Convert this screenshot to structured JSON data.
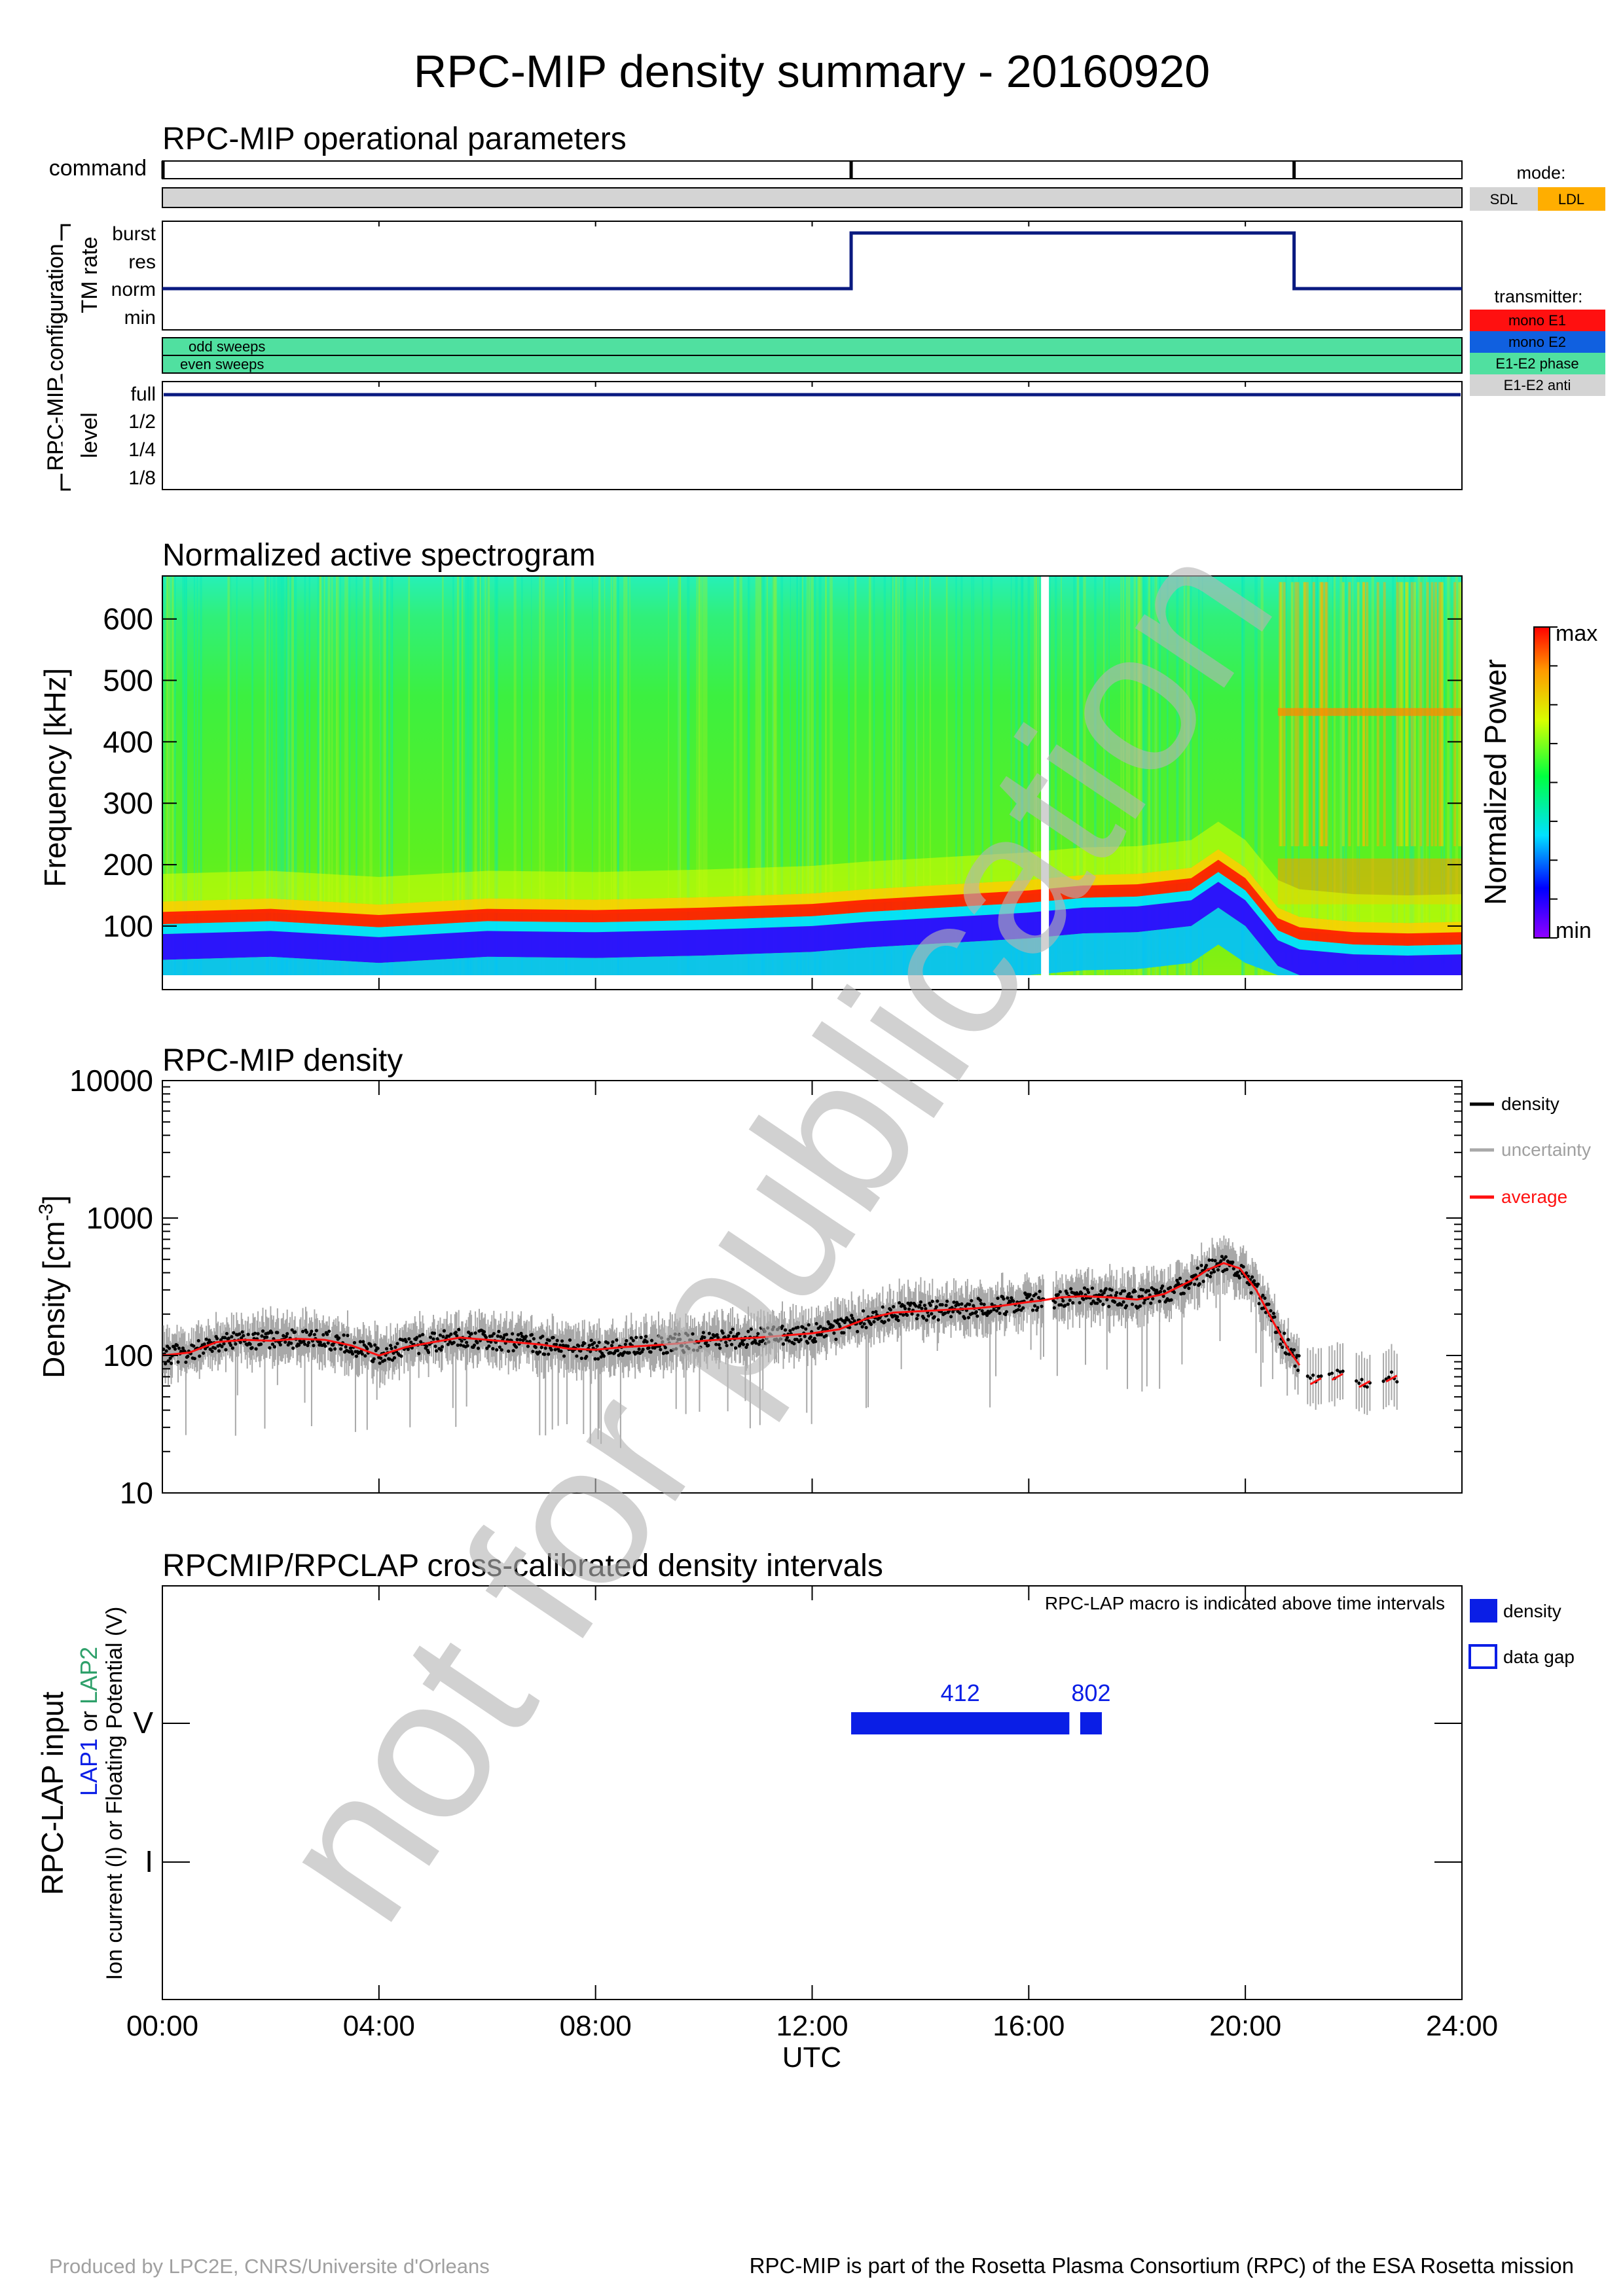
{
  "title": "RPC-MIP density summary - 20160920",
  "footer": {
    "left": "Produced by LPC2E, CNRS/Universite d'Orleans",
    "right": "RPC-MIP is part of the Rosetta Plasma Consortium (RPC) of the ESA Rosetta mission"
  },
  "watermark": "not for publication",
  "colors": {
    "navy": "#0a1a80",
    "red": "#ff1010",
    "blue": "#1060e0",
    "green": "#50e0a0",
    "gray": "#d4d4d4",
    "orange": "#ffae00",
    "lap_blue": "#0a1ee6",
    "lap2_green": "#2ea06a"
  },
  "ops": {
    "title": "RPC-MIP operational parameters",
    "command_label": "command",
    "config_label": "RPC-MIP configuration",
    "tm_rate_label": "TM rate",
    "tm_rate_levels": [
      "burst",
      "res",
      "norm",
      "min"
    ],
    "sweeps": [
      "odd sweeps",
      "even sweeps"
    ],
    "level_label": "level",
    "level_levels": [
      "full",
      "1/2",
      "1/4",
      "1/8"
    ],
    "mode_legend": {
      "title": "mode:",
      "items": [
        "SDL",
        "LDL"
      ]
    },
    "transmitter_legend": {
      "title": "transmitter:",
      "items": [
        "mono E1",
        "mono E2",
        "E1-E2 phase",
        "E1-E2 anti"
      ]
    },
    "command_times_h": [
      12.72,
      20.9
    ],
    "tm_rate_series": [
      {
        "t": 0,
        "level": "norm"
      },
      {
        "t": 12.72,
        "level": "burst"
      },
      {
        "t": 20.9,
        "level": "norm"
      },
      {
        "t": 24,
        "level": "norm"
      }
    ],
    "level_series": [
      {
        "t": 0,
        "level": "full"
      },
      {
        "t": 24,
        "level": "full"
      }
    ]
  },
  "spectrogram": {
    "title": "Normalized active spectrogram",
    "ylabel": "Frequency [kHz]",
    "yticks": [
      "100",
      "200",
      "300",
      "400",
      "500",
      "600"
    ],
    "colorbar_label": "Normalized Power",
    "colorbar_max": "max",
    "colorbar_min": "min"
  },
  "density": {
    "title": "RPC-MIP density",
    "ylabel": "Density [cm",
    "ylabel_sup": "-3",
    "ylabel_end": "]",
    "yticks": [
      "10",
      "100",
      "1000",
      "10000"
    ],
    "legend": [
      "density",
      "uncertainty",
      "average"
    ]
  },
  "crosscal": {
    "title": "RPCMIP/RPCLAP cross-calibrated density intervals",
    "note": "RPC-LAP macro is indicated above time intervals",
    "ylabel_main": "RPC-LAP input",
    "ylabel_lap1": "LAP1",
    "ylabel_or": "or",
    "ylabel_lap2": "LAP2",
    "ylabel_bottom": "Ion current (I) or Floating Potential (V)",
    "ycats": [
      "V",
      "I"
    ],
    "legend": [
      "density",
      "data gap"
    ],
    "xlabel": "UTC",
    "xticks": [
      "00:00",
      "04:00",
      "08:00",
      "12:00",
      "16:00",
      "20:00",
      "24:00"
    ]
  },
  "chart_data": [
    {
      "type": "line",
      "title": "RPC-MIP operational parameters",
      "xlabel": "",
      "ylabel": "TM rate",
      "xlim": [
        0,
        24
      ],
      "series": [
        {
          "x": [
            0,
            12.72,
            12.72,
            20.9,
            20.9,
            24
          ],
          "values": [
            "norm",
            "norm",
            "burst",
            "burst",
            "norm",
            "norm"
          ]
        }
      ]
    },
    {
      "type": "heatmap",
      "title": "Normalized active spectrogram",
      "xlabel": "UTC",
      "ylabel": "Frequency [kHz]",
      "xlim": [
        0,
        24
      ],
      "ylim": [
        20,
        670
      ],
      "data_gap_h": 16.3,
      "peak_band_center_kHz": {
        "x": [
          0,
          2,
          4,
          6,
          8,
          10,
          12,
          13,
          14,
          16,
          17,
          18,
          19,
          19.5,
          20,
          20.6,
          21,
          22,
          23,
          24
        ],
        "values": [
          105,
          110,
          100,
          110,
          108,
          112,
          118,
          125,
          130,
          140,
          148,
          150,
          160,
          190,
          160,
          95,
          80,
          72,
          70,
          72
        ]
      }
    },
    {
      "type": "line",
      "title": "RPC-MIP density",
      "xlabel": "UTC",
      "ylabel": "Density [cm-3]",
      "xlim": [
        0,
        24
      ],
      "ylim": [
        10,
        10000
      ],
      "yscale": "log",
      "legend_position": "right",
      "series": [
        {
          "name": "average",
          "x": [
            0,
            0.5,
            1,
            1.5,
            2,
            2.5,
            3,
            3.5,
            4,
            4.5,
            5,
            5.5,
            6,
            6.5,
            7,
            7.5,
            8,
            8.5,
            9,
            9.5,
            10,
            10.5,
            11,
            11.5,
            12,
            12.5,
            13,
            13.5,
            14,
            14.5,
            15,
            15.5,
            16,
            16.2,
            16.6,
            17,
            17.5,
            18,
            18.5,
            19,
            19.3,
            19.6,
            19.9,
            20.2,
            20.5,
            20.8,
            21
          ],
          "values": [
            100,
            105,
            125,
            130,
            128,
            132,
            130,
            118,
            100,
            115,
            125,
            135,
            130,
            125,
            120,
            112,
            110,
            115,
            118,
            122,
            128,
            132,
            135,
            140,
            145,
            155,
            185,
            205,
            210,
            215,
            220,
            230,
            245,
            250,
            265,
            270,
            265,
            255,
            280,
            350,
            420,
            470,
            430,
            300,
            180,
            110,
            85
          ]
        },
        {
          "name": "density",
          "x": [
            21.3,
            21.7,
            22.2,
            22.7
          ],
          "values": [
            65,
            70,
            62,
            68
          ]
        }
      ]
    },
    {
      "type": "bar",
      "title": "RPCMIP/RPCLAP cross-calibrated density intervals",
      "xlabel": "UTC",
      "ylabel": "RPC-LAP input",
      "xlim": [
        0,
        24
      ],
      "intervals": [
        {
          "input": "V",
          "start_h": 12.72,
          "end_h": 16.75,
          "macro": "412"
        },
        {
          "input": "V",
          "start_h": 16.95,
          "end_h": 17.35,
          "macro": "802"
        }
      ]
    }
  ]
}
